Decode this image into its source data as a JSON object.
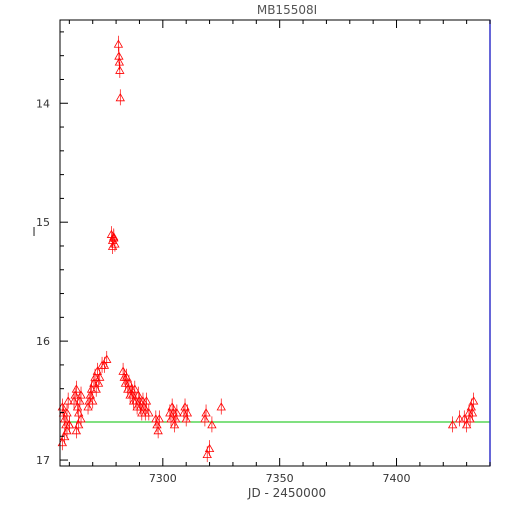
{
  "chart_data": {
    "type": "scatter",
    "title": "MB15508I",
    "xlabel": "JD - 2450000",
    "ylabel": "I",
    "xlim": [
      7256,
      7440
    ],
    "ylim": [
      17.05,
      13.3
    ],
    "y_inverted": true,
    "x_ticks": [
      7300,
      7350,
      7400
    ],
    "y_ticks": [
      14,
      15,
      16,
      17
    ],
    "grid": false,
    "legend": "none",
    "colors": {
      "points": "#ff0000",
      "baseline": "#00c000",
      "axes": "#000000",
      "right_axis": "#3333cc"
    },
    "baseline_value": 16.68,
    "series": [
      {
        "marker": "triangle-open",
        "x": [
          7257,
          7257.5,
          7258,
          7258.5,
          7259,
          7259.5,
          7260,
          7257,
          7258,
          7259,
          7260,
          7262,
          7262.5,
          7263,
          7263.5,
          7264,
          7264.5,
          7265,
          7263,
          7264,
          7265,
          7268,
          7268.5,
          7269,
          7269.5,
          7270,
          7270.5,
          7271,
          7271.5,
          7272,
          7272.5,
          7273,
          7274,
          7275,
          7276,
          7278,
          7278.5,
          7279,
          7279.5,
          7278.5,
          7279,
          7281,
          7281.2,
          7281.4,
          7281.6,
          7281.8,
          7283,
          7283.5,
          7284,
          7284.5,
          7285,
          7285.5,
          7286,
          7286.5,
          7287,
          7287.5,
          7288,
          7288.5,
          7289,
          7289.5,
          7290,
          7290.5,
          7291,
          7291.5,
          7292,
          7292.5,
          7293,
          7294,
          7297,
          7297.5,
          7298,
          7298.5,
          7303,
          7303.5,
          7304,
          7304.5,
          7305,
          7305.5,
          7306,
          7309,
          7309.5,
          7310,
          7310.5,
          7318,
          7318.5,
          7319,
          7320,
          7321,
          7325,
          7424,
          7427,
          7429,
          7430,
          7431,
          7431.5,
          7432,
          7432.5,
          7433
        ],
        "y": [
          16.55,
          16.6,
          16.65,
          16.7,
          16.6,
          16.5,
          16.7,
          16.85,
          16.8,
          16.75,
          16.7,
          16.5,
          16.45,
          16.4,
          16.55,
          16.6,
          16.5,
          16.45,
          16.75,
          16.7,
          16.65,
          16.55,
          16.5,
          16.45,
          16.4,
          16.5,
          16.35,
          16.3,
          16.4,
          16.25,
          16.35,
          16.3,
          16.2,
          16.2,
          16.15,
          15.1,
          15.15,
          15.12,
          15.18,
          15.2,
          15.13,
          13.5,
          13.6,
          13.65,
          13.72,
          13.95,
          16.25,
          16.3,
          16.35,
          16.3,
          16.4,
          16.35,
          16.45,
          16.4,
          16.45,
          16.5,
          16.4,
          16.5,
          16.55,
          16.45,
          16.5,
          16.55,
          16.6,
          16.5,
          16.55,
          16.6,
          16.5,
          16.6,
          16.65,
          16.7,
          16.75,
          16.65,
          16.6,
          16.65,
          16.55,
          16.6,
          16.7,
          16.65,
          16.6,
          16.6,
          16.55,
          16.65,
          16.6,
          16.65,
          16.6,
          16.95,
          16.9,
          16.7,
          16.55,
          16.7,
          16.65,
          16.65,
          16.7,
          16.6,
          16.65,
          16.55,
          16.6,
          16.5
        ]
      }
    ]
  }
}
